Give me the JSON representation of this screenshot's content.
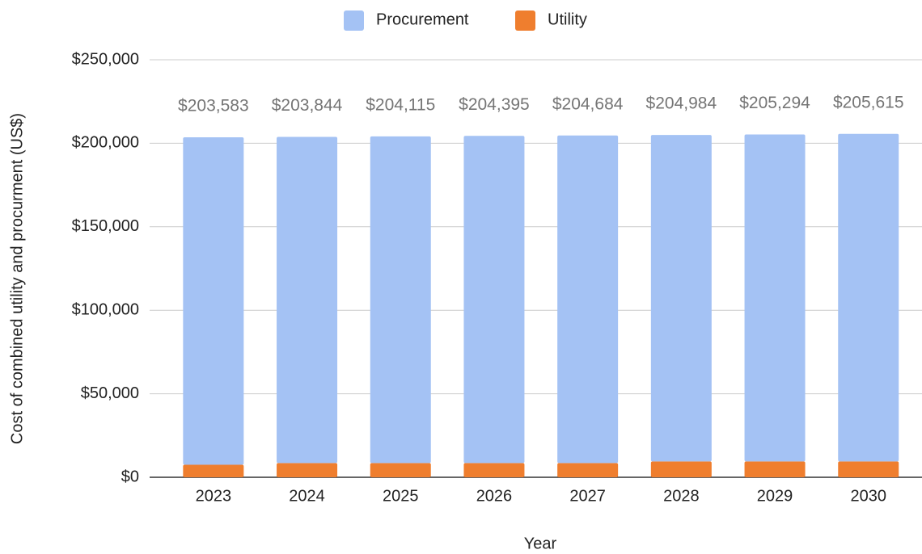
{
  "chart_data": {
    "type": "stacked_bar",
    "x_label": "Year",
    "y_label": "Cost of combined utility and procurment (US$)",
    "categories": [
      "2023",
      "2024",
      "2025",
      "2026",
      "2027",
      "2028",
      "2029",
      "2030"
    ],
    "series": [
      {
        "name": "Utility",
        "color": "#ef7e2e",
        "values": [
          7500,
          8500,
          8500,
          8500,
          8500,
          9500,
          9500,
          9500
        ]
      },
      {
        "name": "Procurement",
        "color": "#a4c2f4",
        "values": [
          196083,
          195344,
          195615,
          195895,
          196184,
          195484,
          195794,
          196115
        ]
      }
    ],
    "legend_order": [
      1,
      0
    ],
    "totals": [
      203583,
      203844,
      204115,
      204395,
      204684,
      204984,
      205294,
      205615
    ],
    "total_labels": [
      "$203,583",
      "$203,844",
      "$204,115",
      "$204,395",
      "$204,684",
      "$204,984",
      "$205,294",
      "$205,615"
    ],
    "ylim": [
      0,
      250000
    ],
    "yticks": [
      {
        "value": 0,
        "label": "$0"
      },
      {
        "value": 50000,
        "label": "$50,000"
      },
      {
        "value": 100000,
        "label": "$100,000"
      },
      {
        "value": 150000,
        "label": "$150,000"
      },
      {
        "value": 200000,
        "label": "$200,000"
      },
      {
        "value": 250000,
        "label": "$250,000"
      }
    ],
    "grid": true,
    "legend": "top"
  }
}
